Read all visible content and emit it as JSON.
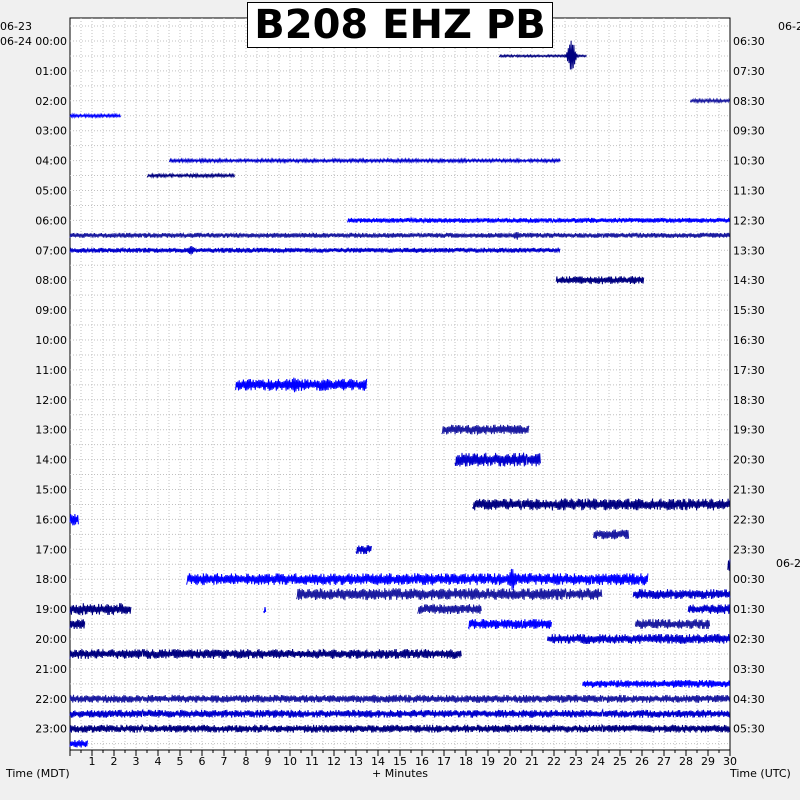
{
  "title": "B208 EHZ PB",
  "corner_labels": {
    "top_left_prev_date": "06-23",
    "top_left_date": "06-24",
    "top_right_date": "06-2",
    "right_date_change": "06-2"
  },
  "colors": {
    "background": "#f0f0f0",
    "plot_background": "#ffffff",
    "grid": "#c0c0c0",
    "traces": [
      "#000080",
      "#0000ff",
      "#1a1aa0",
      "#0000cc"
    ]
  },
  "chart_data": {
    "type": "line",
    "title": "B208 EHZ PB",
    "xlabel": "+ Minutes",
    "left_axis_label": "Time (MDT)",
    "right_axis_label": "Time (UTC)",
    "xlim": [
      0,
      30
    ],
    "x_ticks": [
      "1",
      "2",
      "3",
      "4",
      "5",
      "6",
      "7",
      "8",
      "9",
      "10",
      "11",
      "12",
      "13",
      "14",
      "15",
      "16",
      "17",
      "18",
      "19",
      "20",
      "21",
      "22",
      "23",
      "24",
      "25",
      "26",
      "27",
      "28",
      "29",
      "30"
    ],
    "left_hours": [
      "00:00",
      "01:00",
      "02:00",
      "03:00",
      "04:00",
      "05:00",
      "06:00",
      "07:00",
      "08:00",
      "09:00",
      "10:00",
      "11:00",
      "12:00",
      "13:00",
      "14:00",
      "15:00",
      "16:00",
      "17:00",
      "18:00",
      "19:00",
      "20:00",
      "21:00",
      "22:00",
      "23:00"
    ],
    "right_hours": [
      "06:30",
      "07:30",
      "08:30",
      "09:30",
      "10:30",
      "11:30",
      "12:30",
      "13:30",
      "14:30",
      "15:30",
      "16:30",
      "17:30",
      "18:30",
      "19:30",
      "20:30",
      "21:30",
      "22:30",
      "23:30",
      "00:30",
      "01:30",
      "02:30",
      "03:30",
      "04:30",
      "05:30"
    ],
    "grid": true,
    "segments": [
      {
        "row": 0.5,
        "start": 19.5,
        "end": 23.5,
        "amp": 1,
        "event": 22.8,
        "event_amp": 18
      },
      {
        "row": 2.5,
        "start": 0,
        "end": 2.3,
        "amp": 1.5
      },
      {
        "row": 2,
        "start": 28.2,
        "end": 30,
        "amp": 1.5
      },
      {
        "row": 4,
        "start": 4.5,
        "end": 22.3,
        "amp": 1.5
      },
      {
        "row": 4.5,
        "start": 3.5,
        "end": 7.5,
        "amp": 1.5
      },
      {
        "row": 6,
        "start": 12.6,
        "end": 30,
        "amp": 2.5
      },
      {
        "row": 6.5,
        "start": 0,
        "end": 30,
        "amp": 2.5,
        "event": 20.3,
        "event_amp": 5
      },
      {
        "row": 7,
        "start": 0,
        "end": 22.3,
        "amp": 2.5,
        "event": 5.5,
        "event_amp": 5
      },
      {
        "row": 8,
        "start": 22.1,
        "end": 26.1,
        "amp": 4
      },
      {
        "row": 11.5,
        "start": 7.5,
        "end": 13.5,
        "amp": 6,
        "event": 10.2,
        "event_amp": 9
      },
      {
        "row": 13,
        "start": 16.9,
        "end": 20.9,
        "amp": 5
      },
      {
        "row": 14,
        "start": 17.5,
        "end": 21.4,
        "amp": 7
      },
      {
        "row": 15.5,
        "start": 18.3,
        "end": 30,
        "amp": 6
      },
      {
        "row": 16,
        "start": 0,
        "end": 0.4,
        "amp": 6
      },
      {
        "row": 16.5,
        "start": 23.8,
        "end": 25.4,
        "amp": 5
      },
      {
        "row": 17,
        "start": 13,
        "end": 13.7,
        "amp": 5
      },
      {
        "row": 17.5,
        "start": 29.9,
        "end": 30,
        "amp": 7
      },
      {
        "row": 18,
        "start": 5.3,
        "end": 26.3,
        "amp": 6,
        "event": 20.1,
        "event_amp": 14
      },
      {
        "row": 18.5,
        "start": 10.3,
        "end": 24.2,
        "amp": 6
      },
      {
        "row": 18.5,
        "start": 25.6,
        "end": 30,
        "amp": 5
      },
      {
        "row": 19,
        "start": 0,
        "end": 2.8,
        "amp": 6
      },
      {
        "row": 19,
        "start": 8.8,
        "end": 8.9,
        "amp": 5
      },
      {
        "row": 19,
        "start": 15.8,
        "end": 18.7,
        "amp": 5
      },
      {
        "row": 19,
        "start": 28.1,
        "end": 30,
        "amp": 5
      },
      {
        "row": 19.5,
        "start": 0,
        "end": 0.7,
        "amp": 5
      },
      {
        "row": 19.5,
        "start": 18.1,
        "end": 21.9,
        "amp": 5
      },
      {
        "row": 19.5,
        "start": 25.7,
        "end": 29.1,
        "amp": 5
      },
      {
        "row": 20,
        "start": 21.7,
        "end": 30,
        "amp": 5
      },
      {
        "row": 20.5,
        "start": 0,
        "end": 17.8,
        "amp": 5
      },
      {
        "row": 21.5,
        "start": 23.3,
        "end": 30,
        "amp": 4
      },
      {
        "row": 22,
        "start": 0,
        "end": 30,
        "amp": 4
      },
      {
        "row": 22.5,
        "start": 0,
        "end": 30,
        "amp": 4
      },
      {
        "row": 23,
        "start": 0,
        "end": 30,
        "amp": 4
      },
      {
        "row": 23.5,
        "start": 0,
        "end": 0.8,
        "amp": 4
      }
    ]
  }
}
